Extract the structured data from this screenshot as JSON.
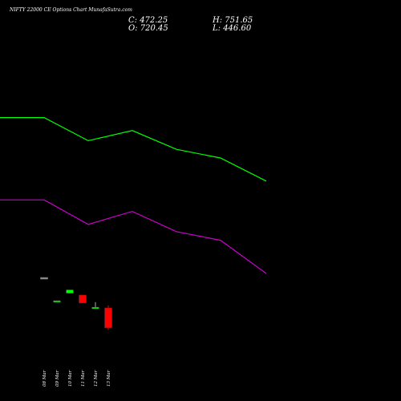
{
  "header": {
    "title": "NIFTY 22000 CE Options Chart MunafaSutra.com",
    "close_label": "C: 472.25",
    "open_label": "O: 720.45",
    "high_label": "H: 751.65",
    "low_label": "L: 446.60"
  },
  "colors": {
    "background": "#000000",
    "up": "#00ff00",
    "down": "#ff0000",
    "upper_band": "#00ff00",
    "lower_band": "#cc00cc",
    "neutral": "#888888"
  },
  "chart_data": {
    "type": "candlestick",
    "title": "NIFTY 22000 CE Options Chart MunafaSutra.com",
    "categories": [
      "08 Mar",
      "09 Mar",
      "10 Mar",
      "11 Mar",
      "12 Mar",
      "13 Mar"
    ],
    "candles": [
      {
        "date": "08 Mar",
        "open": 1100,
        "high": 1100,
        "low": 1100,
        "close": 1100
      },
      {
        "date": "09 Mar",
        "open": 796,
        "high": 811,
        "low": 796,
        "close": 811
      },
      {
        "date": "10 Mar",
        "open": 904,
        "high": 946,
        "low": 904,
        "close": 946
      },
      {
        "date": "11 Mar",
        "open": 881,
        "high": 881,
        "low": 781,
        "close": 781
      },
      {
        "date": "12 Mar",
        "open": 721,
        "high": 792,
        "low": 721,
        "close": 730
      },
      {
        "date": "13 Mar",
        "open": 720.45,
        "high": 751.65,
        "low": 446.6,
        "close": 472.25
      }
    ],
    "bands": [
      {
        "name": "",
        "color": "#00ff00",
        "points": [
          [
            0,
            3094
          ],
          [
            55,
            3094
          ],
          [
            110,
            2806
          ],
          [
            165,
            2932
          ],
          [
            220,
            2698
          ],
          [
            275,
            2590
          ],
          [
            332,
            2302
          ]
        ]
      },
      {
        "name": "",
        "color": "#cc00cc",
        "points": [
          [
            0,
            2068
          ],
          [
            55,
            2068
          ],
          [
            110,
            1762
          ],
          [
            165,
            1924
          ],
          [
            220,
            1672
          ],
          [
            275,
            1564
          ],
          [
            332,
            1150
          ]
        ]
      }
    ],
    "ylim": [
      0,
      3600
    ]
  }
}
